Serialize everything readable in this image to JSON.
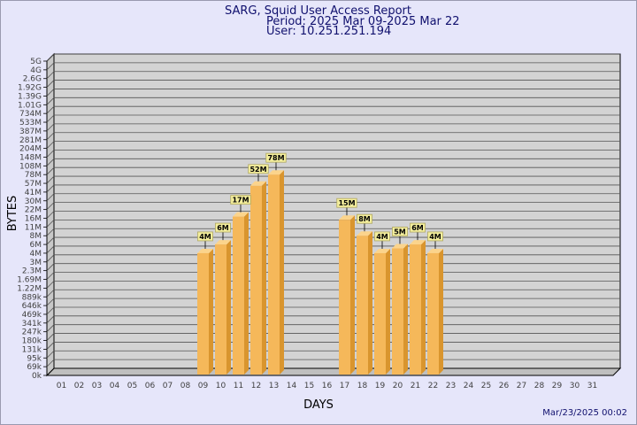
{
  "header": {
    "title": "SARG, Squid User Access Report",
    "period": "Period: 2025 Mar 09-2025 Mar 22",
    "user": "User: 10.251.251.194"
  },
  "footer": {
    "generated": "Mar/23/2025 00:02"
  },
  "colors": {
    "background": "#e6e6fa",
    "plot": "#d3d3d3",
    "bar_front": "#f5b85a",
    "bar_side": "#d9952e",
    "bar_top": "#fbd48c",
    "label_box": "#f4ee9c",
    "title": "#10106e"
  },
  "chart_data": {
    "type": "bar",
    "title": "SARG, Squid User Access Report",
    "xlabel": "DAYS",
    "ylabel": "BYTES",
    "scale": "log",
    "grid": true,
    "y_ticks": [
      "0k",
      "69k",
      "95k",
      "131k",
      "180k",
      "247k",
      "341k",
      "469k",
      "646k",
      "889k",
      "1.22M",
      "1.69M",
      "2.3M",
      "3M",
      "4M",
      "6M",
      "8M",
      "11M",
      "16M",
      "22M",
      "30M",
      "41M",
      "57M",
      "78M",
      "108M",
      "148M",
      "204M",
      "281M",
      "387M",
      "533M",
      "734M",
      "1.01G",
      "1.39G",
      "1.92G",
      "2.6G",
      "4G",
      "5G"
    ],
    "categories": [
      "01",
      "02",
      "03",
      "04",
      "05",
      "06",
      "07",
      "08",
      "09",
      "10",
      "11",
      "12",
      "13",
      "14",
      "15",
      "16",
      "17",
      "18",
      "19",
      "20",
      "21",
      "22",
      "23",
      "24",
      "25",
      "26",
      "27",
      "28",
      "29",
      "30",
      "31"
    ],
    "values": [
      null,
      null,
      null,
      null,
      null,
      null,
      null,
      null,
      4,
      6,
      17,
      52,
      78,
      null,
      null,
      null,
      15,
      8,
      4,
      5,
      6,
      4,
      null,
      null,
      null,
      null,
      null,
      null,
      null,
      null,
      null
    ],
    "value_labels": [
      "",
      "",
      "",
      "",
      "",
      "",
      "",
      "",
      "4M",
      "6M",
      "17M",
      "52M",
      "78M",
      "",
      "",
      "",
      "15M",
      "8M",
      "4M",
      "5M",
      "6M",
      "4M",
      "",
      "",
      "",
      "",
      "",
      "",
      "",
      "",
      ""
    ],
    "unit": "M"
  }
}
